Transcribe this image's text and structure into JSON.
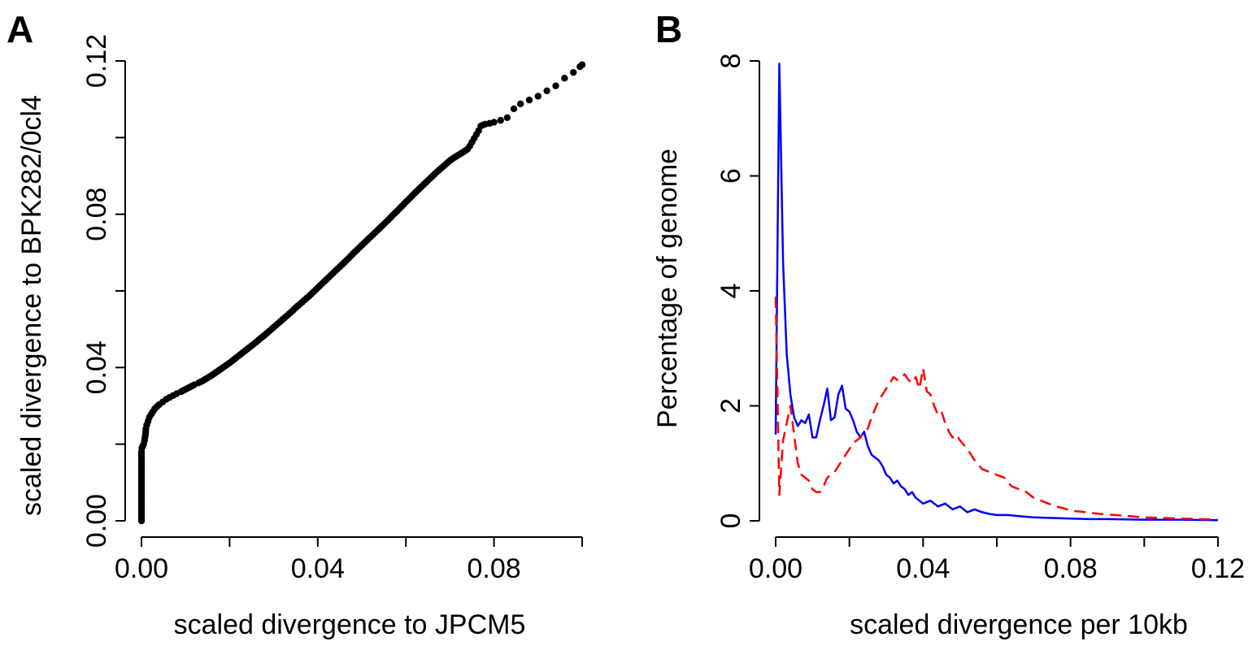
{
  "chart_data": [
    {
      "panel_label": "A",
      "type": "scatter",
      "xlabel": "scaled divergence to JPCM5",
      "ylabel": "scaled divergence to BPK282/0cl4",
      "xlim": [
        0,
        0.1
      ],
      "ylim": [
        0,
        0.12
      ],
      "xticks": [
        0,
        0.02,
        0.04,
        0.06,
        0.08,
        0.1
      ],
      "xtick_labels": [
        "0.00",
        "",
        "0.04",
        "",
        "0.08",
        ""
      ],
      "yticks": [
        0,
        0.02,
        0.04,
        0.06,
        0.08,
        0.1,
        0.12
      ],
      "ytick_labels": [
        "0.00",
        "",
        "0.04",
        "",
        "0.08",
        "",
        "0.12"
      ],
      "marker_color": "#000000",
      "points": [
        [
          0,
          0
        ],
        [
          0,
          0.002
        ],
        [
          0,
          0.004
        ],
        [
          0,
          0.006
        ],
        [
          0,
          0.008
        ],
        [
          0,
          0.01
        ],
        [
          0,
          0.012
        ],
        [
          0,
          0.014
        ],
        [
          0,
          0.016
        ],
        [
          0,
          0.018
        ],
        [
          0.0001,
          0.019
        ],
        [
          0.0003,
          0.0195
        ],
        [
          0.0005,
          0.02
        ],
        [
          0.0007,
          0.021
        ],
        [
          0.0009,
          0.0225
        ],
        [
          0.001,
          0.024
        ],
        [
          0.0012,
          0.025
        ],
        [
          0.0015,
          0.026
        ],
        [
          0.0018,
          0.027
        ],
        [
          0.0022,
          0.0278
        ],
        [
          0.0026,
          0.0285
        ],
        [
          0.003,
          0.0292
        ],
        [
          0.0035,
          0.0298
        ],
        [
          0.004,
          0.0303
        ],
        [
          0.0048,
          0.031
        ],
        [
          0.0056,
          0.0317
        ],
        [
          0.0064,
          0.0322
        ],
        [
          0.0072,
          0.0327
        ],
        [
          0.008,
          0.0332
        ],
        [
          0.009,
          0.0337
        ],
        [
          0.01,
          0.0343
        ],
        [
          0.011,
          0.0349
        ],
        [
          0.012,
          0.0355
        ],
        [
          0.013,
          0.036
        ],
        [
          0.014,
          0.0366
        ],
        [
          0.015,
          0.0373
        ],
        [
          0.016,
          0.038
        ],
        [
          0.017,
          0.0388
        ],
        [
          0.018,
          0.0396
        ],
        [
          0.019,
          0.0404
        ],
        [
          0.02,
          0.0412
        ],
        [
          0.021,
          0.0421
        ],
        [
          0.022,
          0.043
        ],
        [
          0.023,
          0.0439
        ],
        [
          0.024,
          0.0448
        ],
        [
          0.025,
          0.0457
        ],
        [
          0.026,
          0.0466
        ],
        [
          0.027,
          0.0476
        ],
        [
          0.028,
          0.0485
        ],
        [
          0.029,
          0.0495
        ],
        [
          0.03,
          0.0505
        ],
        [
          0.031,
          0.0515
        ],
        [
          0.032,
          0.0525
        ],
        [
          0.033,
          0.0535
        ],
        [
          0.034,
          0.0545
        ],
        [
          0.035,
          0.0556
        ],
        [
          0.036,
          0.0566
        ],
        [
          0.037,
          0.0576
        ],
        [
          0.038,
          0.0586
        ],
        [
          0.039,
          0.0597
        ],
        [
          0.04,
          0.0608
        ],
        [
          0.041,
          0.0619
        ],
        [
          0.042,
          0.063
        ],
        [
          0.043,
          0.0641
        ],
        [
          0.044,
          0.0652
        ],
        [
          0.045,
          0.0663
        ],
        [
          0.046,
          0.0674
        ],
        [
          0.047,
          0.0685
        ],
        [
          0.048,
          0.0697
        ],
        [
          0.049,
          0.0708
        ],
        [
          0.05,
          0.0719
        ],
        [
          0.051,
          0.073
        ],
        [
          0.052,
          0.0741
        ],
        [
          0.053,
          0.0752
        ],
        [
          0.054,
          0.0763
        ],
        [
          0.055,
          0.0774
        ],
        [
          0.056,
          0.0785
        ],
        [
          0.057,
          0.0797
        ],
        [
          0.058,
          0.0808
        ],
        [
          0.059,
          0.082
        ],
        [
          0.06,
          0.0832
        ],
        [
          0.061,
          0.0843
        ],
        [
          0.062,
          0.0855
        ],
        [
          0.063,
          0.0866
        ],
        [
          0.064,
          0.0877
        ],
        [
          0.065,
          0.0888
        ],
        [
          0.066,
          0.0899
        ],
        [
          0.067,
          0.091
        ],
        [
          0.068,
          0.092
        ],
        [
          0.069,
          0.093
        ],
        [
          0.07,
          0.094
        ],
        [
          0.071,
          0.0948
        ],
        [
          0.072,
          0.0955
        ],
        [
          0.073,
          0.0962
        ],
        [
          0.074,
          0.097
        ],
        [
          0.0745,
          0.0978
        ],
        [
          0.075,
          0.0988
        ],
        [
          0.0755,
          0.0998
        ],
        [
          0.076,
          0.1008
        ],
        [
          0.0765,
          0.1018
        ],
        [
          0.077,
          0.103
        ],
        [
          0.0775,
          0.1033
        ],
        [
          0.078,
          0.1035
        ],
        [
          0.079,
          0.1037
        ],
        [
          0.08,
          0.104
        ],
        [
          0.0815,
          0.1045
        ],
        [
          0.083,
          0.1052
        ],
        [
          0.0845,
          0.1075
        ],
        [
          0.086,
          0.1088
        ],
        [
          0.088,
          0.1098
        ],
        [
          0.09,
          0.1108
        ],
        [
          0.092,
          0.1122
        ],
        [
          0.094,
          0.1135
        ],
        [
          0.096,
          0.1155
        ],
        [
          0.098,
          0.117
        ],
        [
          0.0995,
          0.1185
        ],
        [
          0.1,
          0.119
        ]
      ]
    },
    {
      "panel_label": "B",
      "type": "line",
      "xlabel": "scaled divergence per 10kb",
      "ylabel": "Percentage of genome",
      "xlim": [
        0,
        0.12
      ],
      "ylim": [
        0,
        8
      ],
      "xticks": [
        0,
        0.02,
        0.04,
        0.06,
        0.08,
        0.1,
        0.12
      ],
      "xtick_labels": [
        "0.00",
        "",
        "0.04",
        "",
        "0.08",
        "",
        "0.12"
      ],
      "yticks": [
        0,
        2,
        4,
        6,
        8
      ],
      "ytick_labels": [
        "0",
        "2",
        "4",
        "6",
        "8"
      ],
      "series": [
        {
          "color": "#0000ff",
          "dash": "solid",
          "x": [
            0,
            0.001,
            0.002,
            0.003,
            0.004,
            0.005,
            0.006,
            0.007,
            0.008,
            0.009,
            0.01,
            0.011,
            0.012,
            0.013,
            0.014,
            0.015,
            0.016,
            0.017,
            0.018,
            0.019,
            0.02,
            0.021,
            0.022,
            0.023,
            0.024,
            0.025,
            0.026,
            0.027,
            0.028,
            0.029,
            0.03,
            0.031,
            0.032,
            0.033,
            0.034,
            0.035,
            0.036,
            0.037,
            0.038,
            0.039,
            0.04,
            0.042,
            0.044,
            0.046,
            0.048,
            0.05,
            0.052,
            0.054,
            0.056,
            0.058,
            0.06,
            0.063,
            0.066,
            0.07,
            0.075,
            0.08,
            0.085,
            0.09,
            0.1,
            0.11,
            0.12
          ],
          "y": [
            1.5,
            7.95,
            4.5,
            2.9,
            2.2,
            1.8,
            1.65,
            1.75,
            1.7,
            1.85,
            1.45,
            1.45,
            1.75,
            2.0,
            2.3,
            1.75,
            1.8,
            2.2,
            2.35,
            1.95,
            1.9,
            1.75,
            1.55,
            1.45,
            1.55,
            1.3,
            1.15,
            1.1,
            1.05,
            0.95,
            0.8,
            0.75,
            0.65,
            0.7,
            0.6,
            0.55,
            0.45,
            0.5,
            0.4,
            0.35,
            0.3,
            0.35,
            0.25,
            0.3,
            0.2,
            0.25,
            0.15,
            0.2,
            0.15,
            0.12,
            0.1,
            0.1,
            0.08,
            0.06,
            0.05,
            0.04,
            0.03,
            0.03,
            0.02,
            0.02,
            0.01
          ]
        },
        {
          "color": "#ff0000",
          "dash": "dashed",
          "x": [
            0,
            0.001,
            0.002,
            0.003,
            0.004,
            0.005,
            0.006,
            0.007,
            0.008,
            0.009,
            0.01,
            0.011,
            0.012,
            0.013,
            0.014,
            0.015,
            0.016,
            0.017,
            0.018,
            0.019,
            0.02,
            0.021,
            0.022,
            0.023,
            0.024,
            0.025,
            0.026,
            0.027,
            0.028,
            0.029,
            0.03,
            0.031,
            0.032,
            0.033,
            0.034,
            0.035,
            0.036,
            0.037,
            0.038,
            0.039,
            0.04,
            0.041,
            0.042,
            0.043,
            0.044,
            0.045,
            0.046,
            0.047,
            0.048,
            0.049,
            0.05,
            0.052,
            0.054,
            0.056,
            0.058,
            0.06,
            0.062,
            0.064,
            0.066,
            0.068,
            0.07,
            0.072,
            0.074,
            0.076,
            0.078,
            0.08,
            0.084,
            0.088,
            0.092,
            0.096,
            0.1,
            0.105,
            0.11,
            0.115,
            0.12
          ],
          "y": [
            3.9,
            0.45,
            1.4,
            1.7,
            2.0,
            1.5,
            1.0,
            0.8,
            0.75,
            0.7,
            0.55,
            0.5,
            0.5,
            0.6,
            0.75,
            0.8,
            0.85,
            0.95,
            1.05,
            1.15,
            1.25,
            1.35,
            1.4,
            1.45,
            1.55,
            1.6,
            1.8,
            1.95,
            2.1,
            2.2,
            2.3,
            2.4,
            2.5,
            2.45,
            2.5,
            2.55,
            2.45,
            2.4,
            2.5,
            2.3,
            2.65,
            2.25,
            2.2,
            2.0,
            1.85,
            1.9,
            1.7,
            1.55,
            1.45,
            1.5,
            1.4,
            1.25,
            1.05,
            0.9,
            0.85,
            0.8,
            0.75,
            0.6,
            0.55,
            0.5,
            0.4,
            0.35,
            0.3,
            0.25,
            0.22,
            0.18,
            0.15,
            0.12,
            0.1,
            0.08,
            0.06,
            0.05,
            0.04,
            0.03,
            0.02
          ]
        }
      ]
    }
  ]
}
